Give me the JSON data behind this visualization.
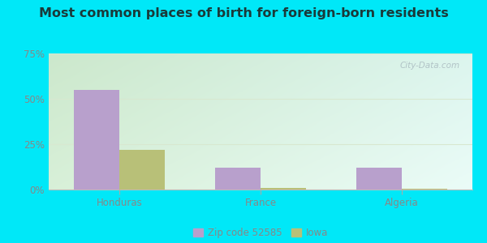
{
  "title": "Most common places of birth for foreign-born residents",
  "categories": [
    "Honduras",
    "France",
    "Algeria"
  ],
  "zip_values": [
    55,
    12,
    12
  ],
  "iowa_values": [
    22,
    1,
    0.5
  ],
  "zip_color": "#b8a0cc",
  "iowa_color": "#b8c078",
  "ylim": [
    0,
    75
  ],
  "yticks": [
    0,
    25,
    50,
    75
  ],
  "ytick_labels": [
    "0%",
    "25%",
    "50%",
    "75%"
  ],
  "legend_zip": "Zip code 52585",
  "legend_iowa": "Iowa",
  "bar_width": 0.32,
  "outer_bg": "#00e8f8",
  "watermark": "City-Data.com",
  "title_fontsize": 11.5,
  "axis_label_fontsize": 8.5,
  "legend_fontsize": 8.5,
  "title_color": "#1a3a3a",
  "grid_color": "#d8e8d0",
  "tick_color": "#888888"
}
